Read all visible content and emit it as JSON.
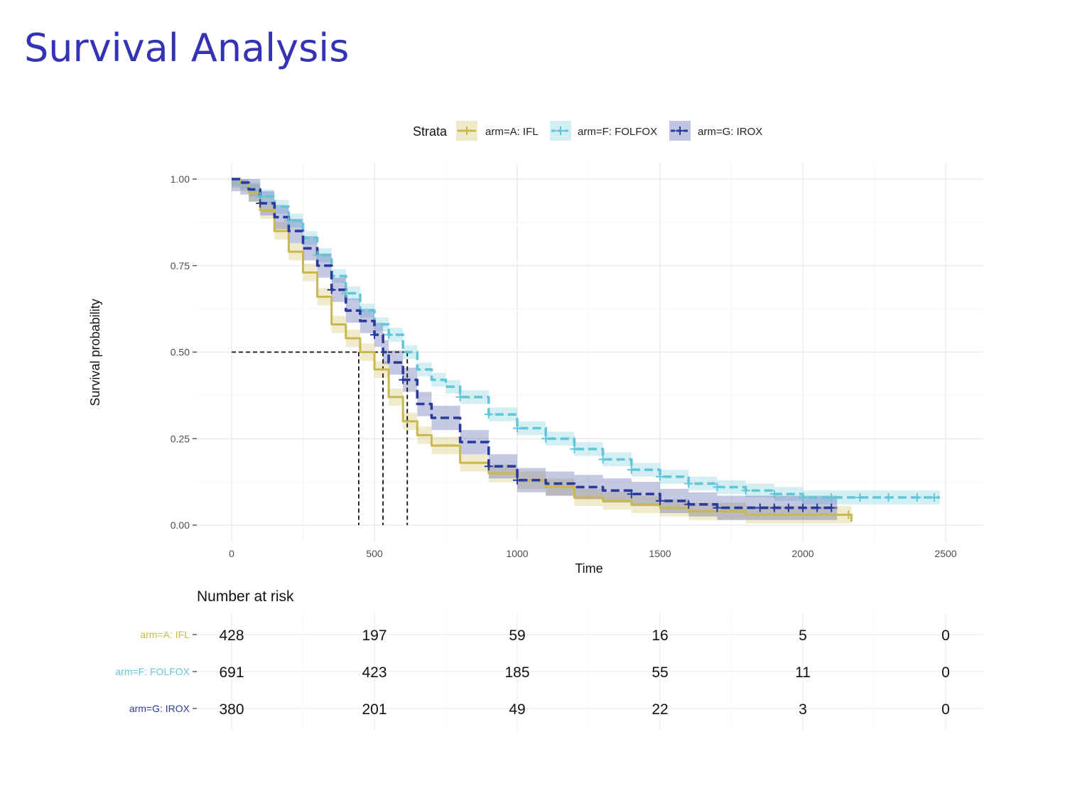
{
  "slide": {
    "title": "Survival Analysis"
  },
  "colors": {
    "IFL": "#c9b84c",
    "FOLFOX": "#63c6d8",
    "IROX": "#2b3b9a",
    "title": "#3333b3"
  },
  "chart_data": {
    "type": "line",
    "subtype": "kaplan-meier",
    "xlabel": "Time",
    "ylabel": "Survival probability",
    "xlim": [
      0,
      2600
    ],
    "ylim": [
      0,
      1
    ],
    "x_ticks": [
      "0",
      "500",
      "1000",
      "1500",
      "2000",
      "2500"
    ],
    "y_ticks": [
      "0.00",
      "0.25",
      "0.50",
      "0.75",
      "1.00"
    ],
    "grid": true,
    "legend": {
      "title": "Strata",
      "position": "top"
    },
    "series": [
      {
        "name": "arm=A: IFL",
        "color": "#c9b84c",
        "dash": "solid",
        "median": 445,
        "ci_halfwidth": 0.025,
        "x": [
          0,
          30,
          60,
          100,
          150,
          200,
          250,
          300,
          350,
          400,
          450,
          500,
          550,
          600,
          650,
          700,
          800,
          900,
          1000,
          1100,
          1200,
          1300,
          1400,
          1500,
          1600,
          1700,
          1800,
          1900,
          2000,
          2100,
          2170
        ],
        "y": [
          1.0,
          0.99,
          0.96,
          0.91,
          0.85,
          0.79,
          0.73,
          0.66,
          0.58,
          0.54,
          0.5,
          0.45,
          0.37,
          0.3,
          0.26,
          0.23,
          0.18,
          0.15,
          0.13,
          0.11,
          0.08,
          0.07,
          0.06,
          0.05,
          0.04,
          0.04,
          0.03,
          0.03,
          0.03,
          0.03,
          0.01
        ],
        "censor_x": [
          2160
        ]
      },
      {
        "name": "arm=F: FOLFOX",
        "color": "#63c6d8",
        "dash": "dashed",
        "median": 615,
        "ci_halfwidth": 0.02,
        "x": [
          0,
          30,
          60,
          100,
          150,
          200,
          250,
          300,
          350,
          400,
          450,
          500,
          550,
          600,
          650,
          700,
          750,
          800,
          900,
          1000,
          1100,
          1200,
          1300,
          1400,
          1500,
          1600,
          1700,
          1800,
          1900,
          2000,
          2100,
          2200,
          2300,
          2400,
          2480
        ],
        "y": [
          1.0,
          0.99,
          0.97,
          0.95,
          0.92,
          0.88,
          0.83,
          0.78,
          0.72,
          0.67,
          0.62,
          0.58,
          0.55,
          0.5,
          0.45,
          0.42,
          0.4,
          0.37,
          0.32,
          0.28,
          0.25,
          0.22,
          0.19,
          0.16,
          0.14,
          0.12,
          0.11,
          0.1,
          0.09,
          0.08,
          0.08,
          0.08,
          0.08,
          0.08,
          0.08
        ],
        "censor_x": [
          100,
          200,
          300,
          400,
          550,
          800,
          900,
          1000,
          1100,
          1200,
          1300,
          1400,
          1500,
          1600,
          1700,
          1800,
          1900,
          2000,
          2100,
          2200,
          2300,
          2400,
          2460
        ]
      },
      {
        "name": "arm=G: IROX",
        "color": "#2b3b9a",
        "dash": "dashed",
        "median": 530,
        "ci_halfwidth": 0.035,
        "x": [
          0,
          30,
          60,
          100,
          150,
          200,
          250,
          300,
          350,
          400,
          450,
          500,
          530,
          550,
          600,
          650,
          700,
          800,
          900,
          1000,
          1100,
          1200,
          1300,
          1400,
          1500,
          1600,
          1700,
          1800,
          1900,
          2000,
          2120
        ],
        "y": [
          1.0,
          0.99,
          0.97,
          0.93,
          0.89,
          0.85,
          0.8,
          0.75,
          0.68,
          0.62,
          0.59,
          0.55,
          0.5,
          0.47,
          0.42,
          0.35,
          0.31,
          0.24,
          0.17,
          0.13,
          0.12,
          0.11,
          0.1,
          0.09,
          0.07,
          0.06,
          0.05,
          0.05,
          0.05,
          0.05,
          0.05
        ],
        "censor_x": [
          100,
          350,
          500,
          600,
          900,
          1000,
          1400,
          1500,
          1600,
          1700,
          1850,
          1900,
          1950,
          2000,
          2050,
          2100
        ]
      }
    ],
    "median_line_y": 0.5,
    "risk_table": {
      "title": "Number at risk",
      "times": [
        0,
        500,
        1000,
        1500,
        2000,
        2500
      ],
      "rows": [
        {
          "label": "arm=A: IFL",
          "color": "#c9b84c",
          "values": [
            "428",
            "197",
            "59",
            "16",
            "5",
            "0"
          ]
        },
        {
          "label": "arm=F: FOLFOX",
          "color": "#63c6d8",
          "values": [
            "691",
            "423",
            "185",
            "55",
            "11",
            "0"
          ]
        },
        {
          "label": "arm=G: IROX",
          "color": "#2b3b9a",
          "values": [
            "380",
            "201",
            "49",
            "22",
            "3",
            "0"
          ]
        }
      ]
    }
  }
}
